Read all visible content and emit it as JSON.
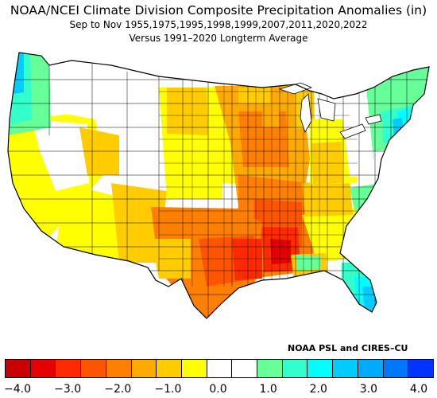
{
  "header": {
    "title": "NOAA/NCEI Climate Division Composite Precipitation Anomalies (in)",
    "subtitle": "Sep to Nov  1955,1975,1995,1998,1999,2007,2011,2020,2022",
    "baseline": "Versus 1991–2020 Longterm Average"
  },
  "credit": "NOAA PSL and CIRES–CU",
  "legend": {
    "colors": [
      "#c80000",
      "#e40000",
      "#ff2a00",
      "#ff5500",
      "#ff7f00",
      "#ffaa00",
      "#ffcc00",
      "#ffff00",
      "#ffffff",
      "#ffffff",
      "#66ff99",
      "#33ffcc",
      "#00ffff",
      "#00ccff",
      "#00aaff",
      "#0077ff",
      "#0033ff"
    ],
    "ticks": [
      "−4.0",
      "−3.0",
      "−2.0",
      "−1.0",
      "0.0",
      "1.0",
      "2.0",
      "3.0",
      "4.0"
    ]
  },
  "map_regions": [
    {
      "name": "pacific-northwest-coast",
      "anomaly": 2.0,
      "color": "#00ccff"
    },
    {
      "name": "oregon-washington-interior",
      "anomaly": 1.0,
      "color": "#66ff99"
    },
    {
      "name": "upper-midwest",
      "anomaly": -2.0,
      "color": "#ff7f00"
    },
    {
      "name": "mid-mississippi-valley",
      "anomaly": -2.0,
      "color": "#ff7f00"
    },
    {
      "name": "lower-mississippi-valley",
      "anomaly": -3.5,
      "color": "#e40000"
    },
    {
      "name": "east-texas",
      "anomaly": -3.0,
      "color": "#ff2a00"
    },
    {
      "name": "central-texas",
      "anomaly": -2.5,
      "color": "#ff5500"
    },
    {
      "name": "new-england",
      "anomaly": 1.0,
      "color": "#66ff99"
    },
    {
      "name": "mid-atlantic",
      "anomaly": 1.5,
      "color": "#33ffcc"
    },
    {
      "name": "florida-peninsula",
      "anomaly": 2.5,
      "color": "#00ccff"
    },
    {
      "name": "california",
      "anomaly": -0.7,
      "color": "#ffff00"
    }
  ]
}
